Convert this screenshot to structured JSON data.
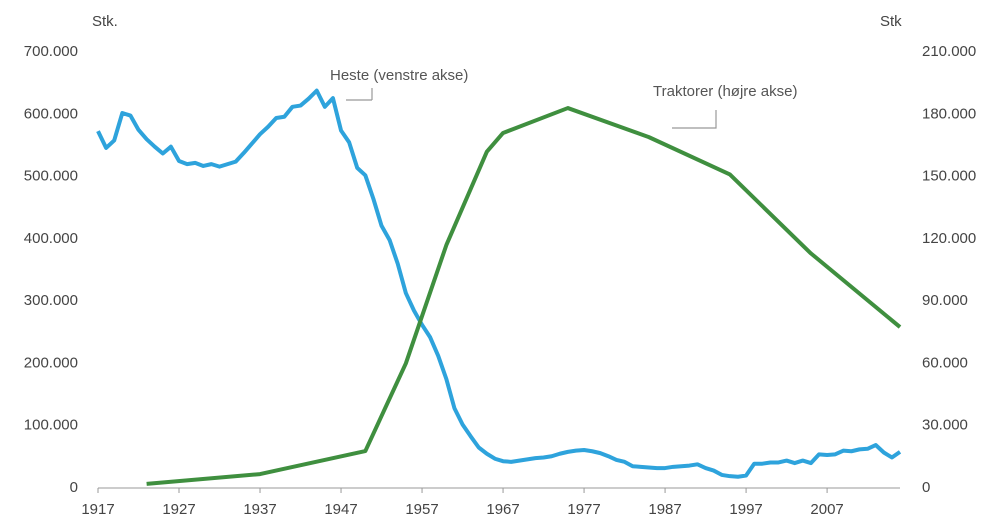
{
  "chart_data": {
    "type": "line",
    "y_label": "Stk.",
    "y2_label": "Stk",
    "annotations": [
      "Heste (venstre akse)",
      "Traktorer (højre akse)"
    ],
    "xlim": [
      1917,
      2016
    ],
    "xticks": [
      1917,
      1927,
      1937,
      1947,
      1957,
      1967,
      1977,
      1987,
      1997,
      2007
    ],
    "ylim": [
      0,
      700000
    ],
    "yticks": [
      {
        "value": 0,
        "label": "0"
      },
      {
        "value": 100000,
        "label": "100.000"
      },
      {
        "value": 200000,
        "label": "200.000"
      },
      {
        "value": 300000,
        "label": "300.000"
      },
      {
        "value": 400000,
        "label": "400.000"
      },
      {
        "value": 500000,
        "label": "500.000"
      },
      {
        "value": 600000,
        "label": "600.000"
      },
      {
        "value": 700000,
        "label": "700.000"
      }
    ],
    "y2lim": [
      0,
      210000
    ],
    "y2ticks": [
      {
        "value": 0,
        "label": "0"
      },
      {
        "value": 30000,
        "label": "30.000"
      },
      {
        "value": 60000,
        "label": "60.000"
      },
      {
        "value": 90000,
        "label": "90.000"
      },
      {
        "value": 120000,
        "label": "120.000"
      },
      {
        "value": 150000,
        "label": "150.000"
      },
      {
        "value": 180000,
        "label": "180.000"
      },
      {
        "value": 210000,
        "label": "210.000"
      }
    ],
    "series": [
      {
        "name": "Heste",
        "color": "#2ea3dc",
        "x": [
          1917,
          1918,
          1919,
          1920,
          1921,
          1922,
          1923,
          1924,
          1925,
          1926,
          1927,
          1928,
          1929,
          1930,
          1931,
          1932,
          1933,
          1934,
          1935,
          1936,
          1937,
          1938,
          1939,
          1940,
          1941,
          1942,
          1943,
          1944,
          1945,
          1946,
          1947,
          1948,
          1949,
          1950,
          1951,
          1952,
          1953,
          1954,
          1955,
          1956,
          1957,
          1958,
          1959,
          1960,
          1961,
          1962,
          1963,
          1964,
          1965,
          1966,
          1967,
          1968,
          1969,
          1970,
          1971,
          1972,
          1973,
          1974,
          1975,
          1976,
          1977,
          1978,
          1979,
          1980,
          1981,
          1982,
          1983,
          1984,
          1985,
          1986,
          1987,
          1988,
          1989,
          1990,
          1991,
          1992,
          1993,
          1994,
          1995,
          1996,
          1997,
          1998,
          1999,
          2000,
          2001,
          2002,
          2003,
          2004,
          2005,
          2006,
          2007,
          2008,
          2009,
          2010,
          2011,
          2012,
          2013,
          2014,
          2015,
          2016
        ],
        "values": [
          573000,
          546000,
          558000,
          602000,
          598000,
          575000,
          560000,
          548000,
          537000,
          548000,
          525000,
          520000,
          522000,
          517000,
          520000,
          516000,
          520000,
          524000,
          538000,
          553000,
          568000,
          580000,
          594000,
          596000,
          612000,
          614000,
          625000,
          638000,
          612000,
          626000,
          574000,
          555000,
          514000,
          502000,
          464000,
          421000,
          398000,
          360000,
          313000,
          285000,
          262000,
          242000,
          212000,
          175000,
          128000,
          102000,
          83000,
          65000,
          55000,
          47000,
          43000,
          42000,
          44000,
          46000,
          48000,
          49000,
          51000,
          55000,
          58000,
          60000,
          61000,
          59000,
          56000,
          51000,
          45000,
          42000,
          35000,
          34000,
          33000,
          32000,
          32000,
          34000,
          35000,
          36000,
          38000,
          32000,
          28000,
          21000,
          19000,
          18000,
          20000,
          39000,
          39000,
          41000,
          41000,
          44000,
          40000,
          44000,
          40000,
          54000,
          53000,
          54000,
          60000,
          59000,
          62000,
          63000,
          69000,
          57000,
          49000,
          58000
        ]
      },
      {
        "name": "Traktorer",
        "color": "#3f8f3f",
        "axis": "y2",
        "x": [
          1923,
          1937,
          1950,
          1955,
          1960,
          1965,
          1967,
          1975,
          1985,
          1995,
          2005,
          2016
        ],
        "values": [
          2000,
          6700,
          17800,
          60000,
          117000,
          162000,
          171000,
          183000,
          169000,
          151000,
          113000,
          77500
        ]
      }
    ]
  }
}
